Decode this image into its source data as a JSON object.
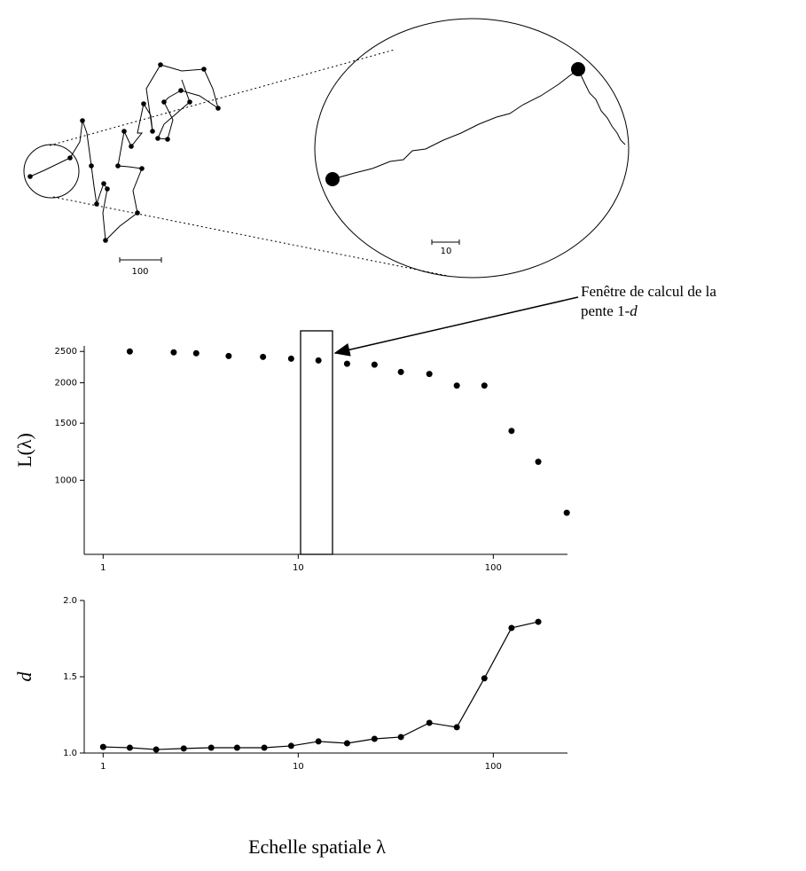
{
  "diagram": {
    "scale_labels": [
      "100",
      "10"
    ]
  },
  "annotation": {
    "line1": "Fenêtre de calcul de la",
    "line2": "pente 1-",
    "italic": "d"
  },
  "chart_data": [
    {
      "type": "scatter",
      "ylabel": "L(λ)",
      "xlog": true,
      "ylog": true,
      "color": "#000000",
      "x": [
        1.37,
        2.3,
        3.0,
        4.4,
        6.6,
        9.2,
        12.7,
        17.8,
        24.6,
        33.6,
        47,
        65,
        90,
        124,
        170,
        238
      ],
      "values": [
        2500,
        2484,
        2468,
        2420,
        2405,
        2375,
        2345,
        2290,
        2275,
        2160,
        2130,
        1960,
        1960,
        1420,
        1140,
        793
      ],
      "xlim": [
        0.8,
        240
      ],
      "ylim": [
        590,
        2600
      ],
      "xticks": [
        1,
        10,
        100
      ],
      "yticks": [
        1000,
        1500,
        2000,
        2500
      ]
    },
    {
      "type": "line",
      "ylabel": "d",
      "xlabel": "Echelle spatiale λ",
      "xlog": true,
      "ylog": false,
      "color": "#000000",
      "x": [
        1.0,
        1.37,
        1.87,
        2.59,
        3.58,
        4.86,
        6.7,
        9.2,
        12.7,
        17.8,
        24.6,
        33.6,
        47,
        65,
        90,
        124,
        170
      ],
      "values": [
        1.04,
        1.035,
        1.023,
        1.03,
        1.035,
        1.035,
        1.035,
        1.047,
        1.076,
        1.064,
        1.093,
        1.105,
        1.198,
        1.169,
        1.49,
        1.82,
        1.86
      ],
      "xlim": [
        0.8,
        240
      ],
      "ylim": [
        1.0,
        2.0
      ],
      "xticks": [
        1,
        10,
        100
      ],
      "yticks": [
        {
          "value": 1.0,
          "label": "1.0"
        },
        1.5,
        {
          "value": 2.0,
          "label": "2.0"
        }
      ]
    }
  ]
}
